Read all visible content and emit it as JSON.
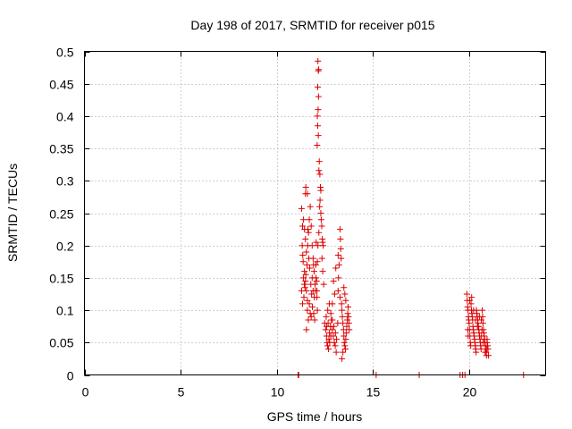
{
  "chart_data": {
    "type": "scatter",
    "title": "Day 198 of 2017, SRMTID for receiver p015",
    "xlabel": "GPS time / hours",
    "ylabel": "SRMTID / TECUs",
    "xlim": [
      0,
      24
    ],
    "ylim": [
      0,
      0.5
    ],
    "xticks": [
      0,
      5,
      10,
      15,
      20
    ],
    "xtick_labels": [
      "0",
      "5",
      "10",
      "15",
      "20"
    ],
    "yticks": [
      0,
      0.05,
      0.1,
      0.15,
      0.2,
      0.25,
      0.3,
      0.35,
      0.4,
      0.45,
      0.5
    ],
    "ytick_labels": [
      "0",
      "0.05",
      "0.1",
      "0.15",
      "0.2",
      "0.25",
      "0.3",
      "0.35",
      "0.4",
      "0.45",
      "0.5"
    ],
    "grid": true,
    "marker": "+",
    "color": "#dd0000",
    "series": [
      {
        "name": "SRMTID",
        "points": [
          [
            11.12,
            0.0
          ],
          [
            11.15,
            0.0
          ],
          [
            15.18,
            0.0
          ],
          [
            17.42,
            0.0
          ],
          [
            19.55,
            0.0
          ],
          [
            19.68,
            0.0
          ],
          [
            19.8,
            0.0
          ],
          [
            22.85,
            0.0
          ],
          [
            11.3,
            0.257
          ],
          [
            11.4,
            0.24
          ],
          [
            11.45,
            0.225
          ],
          [
            11.5,
            0.21
          ],
          [
            11.55,
            0.19
          ],
          [
            11.38,
            0.175
          ],
          [
            11.45,
            0.16
          ],
          [
            11.5,
            0.145
          ],
          [
            11.55,
            0.13
          ],
          [
            11.6,
            0.115
          ],
          [
            11.42,
            0.12
          ],
          [
            11.48,
            0.135
          ],
          [
            11.52,
            0.155
          ],
          [
            11.58,
            0.17
          ],
          [
            11.62,
            0.2
          ],
          [
            11.66,
            0.22
          ],
          [
            11.7,
            0.24
          ],
          [
            11.75,
            0.26
          ],
          [
            11.8,
            0.23
          ],
          [
            11.85,
            0.2
          ],
          [
            11.9,
            0.18
          ],
          [
            11.95,
            0.16
          ],
          [
            12.0,
            0.14
          ],
          [
            11.7,
            0.11
          ],
          [
            11.75,
            0.095
          ],
          [
            11.8,
            0.09
          ],
          [
            11.6,
            0.1
          ],
          [
            11.65,
            0.085
          ],
          [
            11.55,
            0.07
          ],
          [
            11.5,
            0.28
          ],
          [
            11.52,
            0.29
          ],
          [
            11.35,
            0.23
          ],
          [
            11.33,
            0.2
          ],
          [
            11.36,
            0.185
          ],
          [
            11.4,
            0.15
          ],
          [
            11.44,
            0.14
          ],
          [
            11.85,
            0.15
          ],
          [
            11.9,
            0.13
          ],
          [
            11.92,
            0.17
          ],
          [
            11.96,
            0.12
          ],
          [
            12.02,
            0.13
          ],
          [
            12.05,
            0.15
          ],
          [
            12.08,
            0.145
          ],
          [
            12.1,
            0.13
          ],
          [
            12.12,
            0.175
          ],
          [
            12.15,
            0.2
          ],
          [
            12.2,
            0.22
          ],
          [
            12.2,
            0.316
          ],
          [
            12.22,
            0.33
          ],
          [
            12.25,
            0.31
          ],
          [
            12.28,
            0.29
          ],
          [
            12.3,
            0.285
          ],
          [
            12.26,
            0.27
          ],
          [
            12.24,
            0.26
          ],
          [
            12.3,
            0.25
          ],
          [
            12.32,
            0.24
          ],
          [
            12.35,
            0.23
          ],
          [
            12.38,
            0.21
          ],
          [
            12.4,
            0.205
          ],
          [
            12.42,
            0.2
          ],
          [
            12.36,
            0.18
          ],
          [
            12.4,
            0.16
          ],
          [
            12.45,
            0.14
          ],
          [
            12.15,
            0.485
          ],
          [
            12.17,
            0.47
          ],
          [
            12.19,
            0.472
          ],
          [
            12.14,
            0.445
          ],
          [
            12.18,
            0.43
          ],
          [
            12.16,
            0.41
          ],
          [
            12.12,
            0.4
          ],
          [
            12.14,
            0.385
          ],
          [
            12.17,
            0.37
          ],
          [
            12.11,
            0.355
          ],
          [
            12.1,
            0.12
          ],
          [
            12.12,
            0.1
          ],
          [
            12.5,
            0.08
          ],
          [
            12.55,
            0.07
          ],
          [
            12.6,
            0.06
          ],
          [
            12.62,
            0.05
          ],
          [
            12.65,
            0.045
          ],
          [
            12.7,
            0.04
          ],
          [
            12.72,
            0.055
          ],
          [
            12.75,
            0.065
          ],
          [
            12.8,
            0.075
          ],
          [
            12.85,
            0.085
          ],
          [
            12.9,
            0.07
          ],
          [
            12.95,
            0.06
          ],
          [
            13.0,
            0.05
          ],
          [
            13.05,
            0.045
          ],
          [
            13.1,
            0.035
          ],
          [
            12.58,
            0.09
          ],
          [
            12.66,
            0.1
          ],
          [
            12.74,
            0.11
          ],
          [
            12.82,
            0.095
          ],
          [
            12.9,
            0.085
          ],
          [
            12.98,
            0.075
          ],
          [
            13.06,
            0.065
          ],
          [
            13.12,
            0.055
          ],
          [
            13.18,
            0.08
          ],
          [
            13.2,
            0.13
          ],
          [
            13.22,
            0.15
          ],
          [
            13.25,
            0.17
          ],
          [
            13.2,
            0.185
          ],
          [
            13.3,
            0.225
          ],
          [
            13.32,
            0.21
          ],
          [
            13.34,
            0.195
          ],
          [
            13.36,
            0.18
          ],
          [
            13.3,
            0.12
          ],
          [
            13.38,
            0.11
          ],
          [
            13.4,
            0.1
          ],
          [
            13.42,
            0.09
          ],
          [
            13.45,
            0.08
          ],
          [
            13.48,
            0.07
          ],
          [
            13.5,
            0.06
          ],
          [
            13.52,
            0.05
          ],
          [
            13.55,
            0.045
          ],
          [
            13.58,
            0.04
          ],
          [
            13.6,
            0.055
          ],
          [
            13.62,
            0.065
          ],
          [
            13.65,
            0.075
          ],
          [
            13.68,
            0.085
          ],
          [
            13.7,
            0.095
          ],
          [
            13.72,
            0.105
          ],
          [
            13.74,
            0.09
          ],
          [
            13.76,
            0.08
          ],
          [
            13.78,
            0.07
          ],
          [
            13.4,
            0.025
          ],
          [
            13.45,
            0.035
          ],
          [
            13.5,
            0.135
          ],
          [
            13.55,
            0.125
          ],
          [
            13.6,
            0.115
          ],
          [
            13.08,
            0.165
          ],
          [
            13.02,
            0.125
          ],
          [
            12.96,
            0.145
          ],
          [
            12.9,
            0.11
          ],
          [
            12.82,
            0.06
          ],
          [
            12.76,
            0.05
          ],
          [
            12.68,
            0.08
          ],
          [
            12.6,
            0.075
          ],
          [
            11.3,
            0.13
          ],
          [
            11.35,
            0.11
          ],
          [
            11.6,
            0.28
          ],
          [
            11.63,
            0.225
          ],
          [
            11.68,
            0.18
          ],
          [
            11.72,
            0.165
          ],
          [
            11.78,
            0.14
          ],
          [
            11.82,
            0.125
          ],
          [
            11.86,
            0.105
          ],
          [
            11.93,
            0.095
          ],
          [
            11.98,
            0.085
          ],
          [
            12.04,
            0.17
          ],
          [
            12.06,
            0.205
          ],
          [
            19.9,
            0.125
          ],
          [
            19.92,
            0.115
          ],
          [
            19.94,
            0.105
          ],
          [
            19.96,
            0.1
          ],
          [
            19.98,
            0.09
          ],
          [
            20.0,
            0.085
          ],
          [
            20.02,
            0.08
          ],
          [
            20.04,
            0.07
          ],
          [
            20.06,
            0.06
          ],
          [
            20.08,
            0.05
          ],
          [
            20.1,
            0.045
          ],
          [
            20.12,
            0.11
          ],
          [
            20.14,
            0.1
          ],
          [
            20.16,
            0.095
          ],
          [
            20.18,
            0.09
          ],
          [
            20.2,
            0.085
          ],
          [
            20.22,
            0.075
          ],
          [
            20.24,
            0.07
          ],
          [
            20.26,
            0.065
          ],
          [
            20.28,
            0.06
          ],
          [
            20.3,
            0.055
          ],
          [
            20.32,
            0.05
          ],
          [
            20.34,
            0.045
          ],
          [
            20.36,
            0.04
          ],
          [
            20.38,
            0.035
          ],
          [
            20.4,
            0.1
          ],
          [
            20.42,
            0.095
          ],
          [
            20.44,
            0.09
          ],
          [
            20.46,
            0.085
          ],
          [
            20.48,
            0.08
          ],
          [
            20.5,
            0.075
          ],
          [
            20.52,
            0.07
          ],
          [
            20.54,
            0.065
          ],
          [
            20.56,
            0.06
          ],
          [
            20.58,
            0.055
          ],
          [
            20.6,
            0.05
          ],
          [
            20.62,
            0.045
          ],
          [
            20.64,
            0.04
          ],
          [
            20.66,
            0.06
          ],
          [
            20.68,
            0.07
          ],
          [
            20.7,
            0.1
          ],
          [
            20.72,
            0.09
          ],
          [
            20.74,
            0.08
          ],
          [
            20.76,
            0.07
          ],
          [
            20.78,
            0.065
          ],
          [
            20.8,
            0.06
          ],
          [
            20.82,
            0.055
          ],
          [
            20.84,
            0.05
          ],
          [
            20.86,
            0.045
          ],
          [
            20.88,
            0.04
          ],
          [
            20.9,
            0.035
          ],
          [
            20.92,
            0.03
          ],
          [
            20.94,
            0.04
          ],
          [
            20.96,
            0.05
          ],
          [
            20.98,
            0.045
          ],
          [
            21.0,
            0.04
          ],
          [
            19.95,
            0.07
          ],
          [
            19.97,
            0.06
          ],
          [
            20.05,
            0.115
          ],
          [
            20.15,
            0.12
          ],
          [
            20.25,
            0.1
          ],
          [
            20.35,
            0.085
          ],
          [
            20.45,
            0.075
          ],
          [
            20.55,
            0.09
          ],
          [
            20.65,
            0.085
          ],
          [
            20.75,
            0.05
          ],
          [
            20.85,
            0.035
          ],
          [
            20.95,
            0.055
          ],
          [
            21.02,
            0.03
          ]
        ]
      }
    ]
  }
}
